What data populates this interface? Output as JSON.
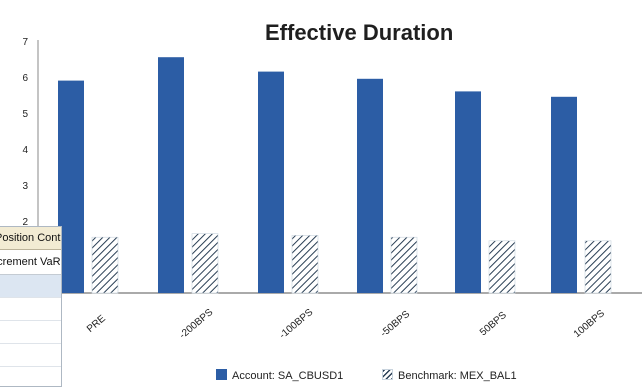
{
  "chart": {
    "title": "Effective Duration",
    "y_ticks": [
      "2",
      "3",
      "4",
      "5",
      "6",
      "7"
    ],
    "legend": [
      {
        "label": "Account: SA_CBUSD1",
        "color": "#2c5da5",
        "pattern": "solid"
      },
      {
        "label": "Benchmark: MEX_BAL1",
        "color": "#2a3f55",
        "pattern": "hatched"
      }
    ]
  },
  "chart_data": {
    "type": "bar",
    "title": "Effective Duration",
    "categories": [
      "PRE",
      "-200BPS",
      "-100BPS",
      "-50BPS",
      "50BPS",
      "100BPS"
    ],
    "series": [
      {
        "name": "Account: SA_CBUSD1",
        "values": [
          5.9,
          6.55,
          6.15,
          5.95,
          5.6,
          5.45
        ]
      },
      {
        "name": "Benchmark: MEX_BAL1",
        "values": [
          1.55,
          1.65,
          1.6,
          1.55,
          1.45,
          1.45
        ]
      }
    ],
    "ylim": [
      0,
      7
    ],
    "grid": false,
    "legend_position": "bottom"
  },
  "panel": {
    "title": "Position Contributi",
    "column_header": "Increment VaR"
  }
}
